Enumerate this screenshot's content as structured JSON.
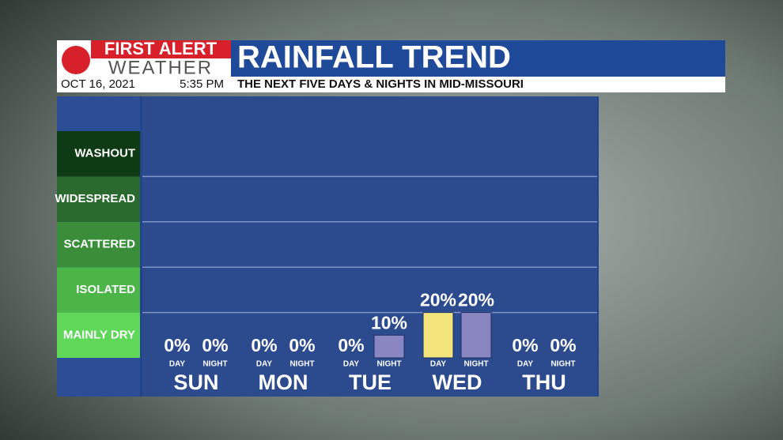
{
  "chart_data": {
    "type": "bar",
    "brand_top": "FIRST ALERT",
    "brand_bottom": "WEATHER",
    "title": "RAINFALL TREND",
    "date": "OCT 16, 2021",
    "time": "5:35 PM",
    "subtitle": "THE NEXT FIVE DAYS & NIGHTS IN MID-MISSOURI",
    "categories": [
      "SUN",
      "MON",
      "TUE",
      "WED",
      "THU"
    ],
    "series": [
      {
        "name": "DAY",
        "color": "#f3e47c",
        "values": [
          0,
          0,
          0,
          20,
          0
        ],
        "value_labels": [
          "0%",
          "0%",
          "0%",
          "20%",
          "0%"
        ]
      },
      {
        "name": "NIGHT",
        "color": "#8986c2",
        "values": [
          0,
          0,
          10,
          20,
          0
        ],
        "value_labels": [
          "0%",
          "0%",
          "10%",
          "20%",
          "0%"
        ]
      }
    ],
    "levels": [
      "MAINLY DRY",
      "ISOLATED",
      "SCATTERED",
      "WIDESPREAD",
      "WASHOUT"
    ],
    "level_colors": [
      "#5fd85a",
      "#4cb548",
      "#3a8e3a",
      "#2a6a2e",
      "#0e3b13"
    ],
    "ylim": [
      0,
      100
    ],
    "yticks": [
      0,
      20,
      40,
      60,
      80,
      100
    ],
    "grid": true
  }
}
